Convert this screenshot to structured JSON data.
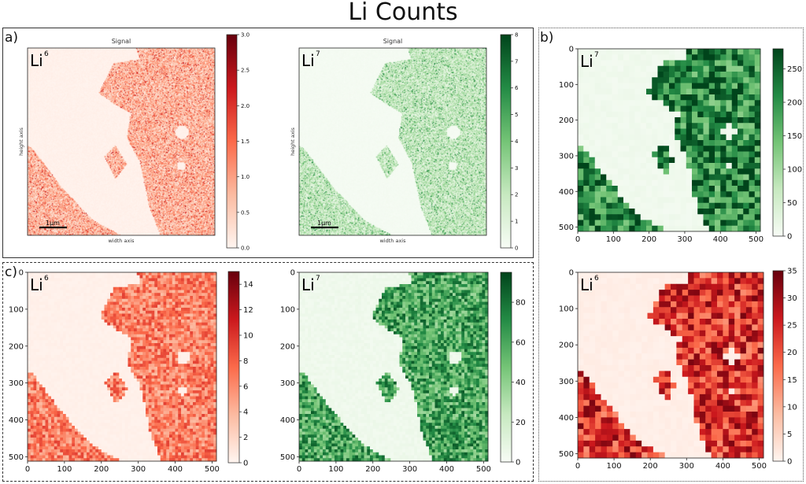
{
  "title": "Li Counts",
  "colors": {
    "reds": [
      "#fff5f0",
      "#fcbba1",
      "#fb6a4a",
      "#cb181d",
      "#67000d"
    ],
    "greens": [
      "#f7fcf5",
      "#c7e9c0",
      "#74c476",
      "#238b45",
      "#00441b"
    ]
  },
  "panels": {
    "a": {
      "label": "a)"
    },
    "b": {
      "label": "b)"
    },
    "c": {
      "label": "c)"
    }
  },
  "chart_data": [
    {
      "id": "a-li6",
      "panel": "a",
      "type": "heatmap",
      "title": "Signal",
      "corner_label": "Li",
      "corner_sup": "6",
      "cmap": "reds",
      "xlabel": "width axis",
      "ylabel": "height axis",
      "scalebar_label": "1µm",
      "cell_grid": 200,
      "fine_noise": true,
      "color_range": [
        0,
        3.0
      ],
      "colorbar_ticks": [
        "0.0",
        "0.5",
        "1.0",
        "1.5",
        "2.0",
        "2.5",
        "3.0"
      ],
      "colorbar_tick_values": [
        0,
        0.5,
        1.0,
        1.5,
        2.0,
        2.5,
        3.0
      ],
      "map_levels": {
        "low": 0.05,
        "high": 0.7
      }
    },
    {
      "id": "a-li7",
      "panel": "a",
      "type": "heatmap",
      "title": "Signal",
      "corner_label": "Li",
      "corner_sup": "7",
      "cmap": "greens",
      "xlabel": "width axis",
      "ylabel": "height axis",
      "scalebar_label": "1µm",
      "cell_grid": 200,
      "fine_noise": true,
      "color_range": [
        0,
        8
      ],
      "colorbar_ticks": [
        "0",
        "1",
        "2",
        "3",
        "4",
        "5",
        "6",
        "7",
        "8"
      ],
      "colorbar_tick_values": [
        0,
        1,
        2,
        3,
        4,
        5,
        6,
        7,
        8
      ],
      "map_levels": {
        "low": 0.1,
        "high": 1.8
      }
    },
    {
      "id": "b-li7",
      "panel": "b",
      "type": "heatmap",
      "corner_label": "Li",
      "corner_sup": "7",
      "cmap": "greens",
      "cell_grid": 32,
      "x_ticks": [
        "0",
        "100",
        "200",
        "300",
        "400",
        "500"
      ],
      "x_tick_values": [
        0,
        100,
        200,
        300,
        400,
        500
      ],
      "y_ticks": [
        "0",
        "100",
        "200",
        "300",
        "400",
        "500"
      ],
      "y_tick_values": [
        0,
        100,
        200,
        300,
        400,
        500
      ],
      "axis_range": [
        0,
        512
      ],
      "color_range": [
        0,
        280
      ],
      "colorbar_ticks": [
        "0",
        "50",
        "100",
        "150",
        "200",
        "250"
      ],
      "colorbar_tick_values": [
        0,
        50,
        100,
        150,
        200,
        250
      ],
      "map_levels": {
        "low": 10,
        "high": 215
      }
    },
    {
      "id": "b-li6",
      "panel": "b",
      "type": "heatmap",
      "corner_label": "Li",
      "corner_sup": "6",
      "cmap": "reds",
      "cell_grid": 32,
      "x_ticks": [
        "0",
        "100",
        "200",
        "300",
        "400",
        "500"
      ],
      "x_tick_values": [
        0,
        100,
        200,
        300,
        400,
        500
      ],
      "y_ticks": [
        "0",
        "100",
        "200",
        "300",
        "400",
        "500"
      ],
      "y_tick_values": [
        0,
        100,
        200,
        300,
        400,
        500
      ],
      "axis_range": [
        0,
        512
      ],
      "color_range": [
        0,
        35
      ],
      "colorbar_ticks": [
        "0",
        "5",
        "10",
        "15",
        "20",
        "25",
        "30",
        "35"
      ],
      "colorbar_tick_values": [
        0,
        5,
        10,
        15,
        20,
        25,
        30,
        35
      ],
      "map_levels": {
        "low": 1,
        "high": 23
      }
    },
    {
      "id": "c-li6",
      "panel": "c",
      "type": "heatmap",
      "corner_label": "Li",
      "corner_sup": "6",
      "cmap": "reds",
      "cell_grid": 64,
      "x_ticks": [
        "0",
        "100",
        "200",
        "300",
        "400",
        "500"
      ],
      "x_tick_values": [
        0,
        100,
        200,
        300,
        400,
        500
      ],
      "y_ticks": [
        "0",
        "100",
        "200",
        "300",
        "400",
        "500"
      ],
      "y_tick_values": [
        0,
        100,
        200,
        300,
        400,
        500
      ],
      "axis_range": [
        0,
        512
      ],
      "color_range": [
        0,
        15
      ],
      "colorbar_ticks": [
        "0",
        "2",
        "4",
        "6",
        "8",
        "10",
        "12",
        "14"
      ],
      "colorbar_tick_values": [
        0,
        2,
        4,
        6,
        8,
        10,
        12,
        14
      ],
      "map_levels": {
        "low": 0.3,
        "high": 6.5
      }
    },
    {
      "id": "c-li7",
      "panel": "c",
      "type": "heatmap",
      "corner_label": "Li",
      "corner_sup": "7",
      "cmap": "greens",
      "cell_grid": 64,
      "x_ticks": [
        "0",
        "100",
        "200",
        "300",
        "400",
        "500"
      ],
      "x_tick_values": [
        0,
        100,
        200,
        300,
        400,
        500
      ],
      "y_ticks": [
        "0",
        "100",
        "200",
        "300",
        "400",
        "500"
      ],
      "y_tick_values": [
        0,
        100,
        200,
        300,
        400,
        500
      ],
      "axis_range": [
        0,
        512
      ],
      "color_range": [
        0,
        95
      ],
      "colorbar_ticks": [
        "0",
        "20",
        "40",
        "60",
        "80"
      ],
      "colorbar_tick_values": [
        0,
        20,
        40,
        60,
        80
      ],
      "map_levels": {
        "low": 4,
        "high": 60
      }
    }
  ]
}
